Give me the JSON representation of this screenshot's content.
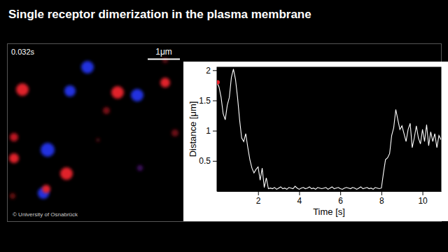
{
  "chart_data": {
    "type": "line",
    "title": "Single receptor dimerization in the plasma membrane",
    "x_label": "Time [s]",
    "y_label": "Distance [μm]",
    "annotations": [
      "0.032s",
      "1μm",
      "© University of Osnabrück"
    ],
    "color": "#ffffff",
    "xlim": [
      0,
      10.9
    ],
    "ylim": [
      0,
      2.05
    ],
    "xticks": [
      2,
      4,
      6,
      8,
      10
    ],
    "yticks": [
      0.5,
      1,
      1.5,
      2
    ],
    "grid": false,
    "current": {
      "x": 0.032,
      "value": 1.8,
      "color": "#e8202a"
    },
    "x": [
      0,
      0.1,
      0.2,
      0.3,
      0.4,
      0.5,
      0.6,
      0.7,
      0.8,
      0.9,
      1,
      1.1,
      1.2,
      1.3,
      1.4,
      1.5,
      1.6,
      1.7,
      1.8,
      1.9,
      2,
      2.1,
      2.2,
      2.3,
      2.4,
      2.5,
      2.6,
      2.7,
      2.8,
      2.9,
      3,
      3.1,
      3.2,
      3.3,
      3.4,
      3.5,
      3.6,
      3.7,
      3.8,
      3.9,
      4,
      4.1,
      4.2,
      4.3,
      4.4,
      4.5,
      4.6,
      4.7,
      4.8,
      4.9,
      5,
      5.1,
      5.2,
      5.3,
      5.4,
      5.5,
      5.6,
      5.7,
      5.8,
      5.9,
      6,
      6.1,
      6.2,
      6.3,
      6.4,
      6.5,
      6.6,
      6.7,
      6.8,
      6.9,
      7,
      7.1,
      7.2,
      7.3,
      7.4,
      7.5,
      7.6,
      7.7,
      7.8,
      7.9,
      8,
      8.1,
      8.2,
      8.3,
      8.4,
      8.5,
      8.6,
      8.7,
      8.8,
      8.9,
      9,
      9.1,
      9.2,
      9.3,
      9.4,
      9.5,
      9.6,
      9.7,
      9.8,
      9.9,
      10,
      10.1,
      10.2,
      10.3,
      10.4,
      10.5,
      10.6,
      10.7,
      10.8,
      10.9
    ],
    "values": [
      1.8,
      1.72,
      1.55,
      1.28,
      1.18,
      1.42,
      1.55,
      1.88,
      2.02,
      1.85,
      1.55,
      1.18,
      0.88,
      0.82,
      0.95,
      0.72,
      0.52,
      0.38,
      0.3,
      0.36,
      0.4,
      0.18,
      0.38,
      0.06,
      0.22,
      0.04,
      0.05,
      0.04,
      0.06,
      0.03,
      0.05,
      0.07,
      0.04,
      0.05,
      0.03,
      0.06,
      0.05,
      0.04,
      0.08,
      0.05,
      0.03,
      0.05,
      0.06,
      0.04,
      0.05,
      0.07,
      0.04,
      0.05,
      0.03,
      0.06,
      0.05,
      0.04,
      0.05,
      0.06,
      0.03,
      0.05,
      0.07,
      0.04,
      0.05,
      0.06,
      0.04,
      0.03,
      0.05,
      0.06,
      0.05,
      0.04,
      0.06,
      0.05,
      0.03,
      0.05,
      0.07,
      0.04,
      0.05,
      0.06,
      0.04,
      0.05,
      0.03,
      0.06,
      0.05,
      0.04,
      0.05,
      0.3,
      0.52,
      0.55,
      0.62,
      0.92,
      1.05,
      1.35,
      1.18,
      1.02,
      1.08,
      0.95,
      0.82,
      1.02,
      1.12,
      0.72,
      0.88,
      1.08,
      0.88,
      0.78,
      1.02,
      0.82,
      1.1,
      0.75,
      0.98,
      0.82,
      0.95,
      0.72,
      0.92,
      0.85
    ]
  }
}
